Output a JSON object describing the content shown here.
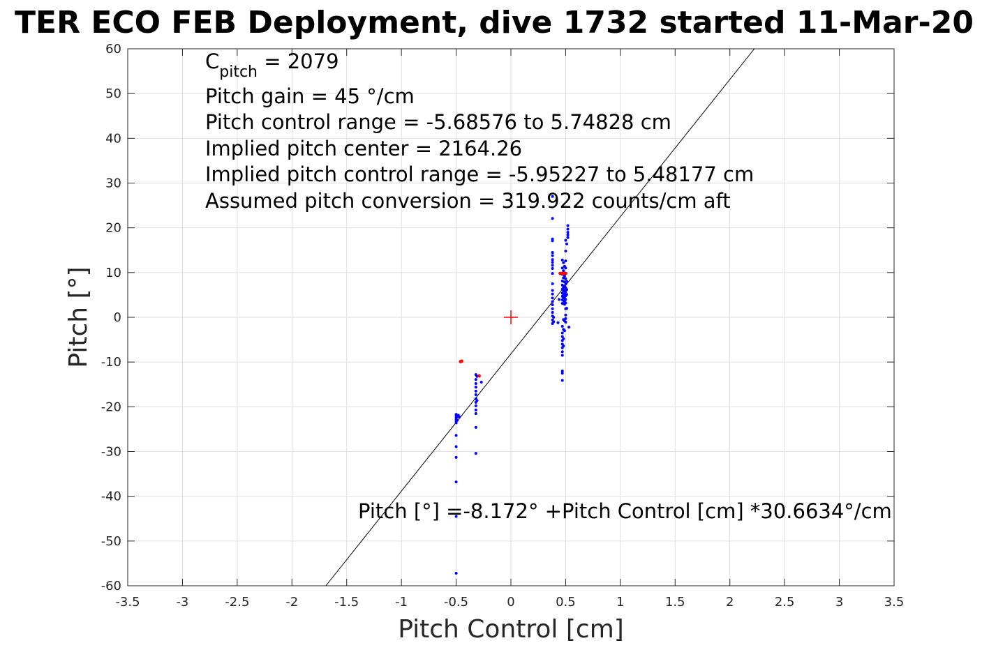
{
  "chart_data": {
    "type": "scatter",
    "title": "TER ECO FEB Deployment, dive 1732 started 11-Mar-20",
    "xlabel": "Pitch Control [cm]",
    "ylabel": "Pitch [°]",
    "xlim": [
      -3.5,
      3.5
    ],
    "ylim": [
      -60,
      60
    ],
    "xticks": [
      -3.5,
      -3,
      -2.5,
      -2,
      -1.5,
      -1,
      -0.5,
      0,
      0.5,
      1,
      1.5,
      2,
      2.5,
      3,
      3.5
    ],
    "xtick_labels": [
      "-3.5",
      "-3",
      "-2.5",
      "-2",
      "-1.5",
      "-1",
      "-0.5",
      "0",
      "0.5",
      "1",
      "1.5",
      "2",
      "2.5",
      "3",
      "3.5"
    ],
    "yticks": [
      -60,
      -50,
      -40,
      -30,
      -20,
      -10,
      0,
      10,
      20,
      30,
      40,
      50,
      60
    ],
    "ytick_labels": [
      "-60",
      "-50",
      "-40",
      "-30",
      "-20",
      "-10",
      "0",
      "10",
      "20",
      "30",
      "40",
      "50",
      "60"
    ],
    "grid": true,
    "annotations": {
      "c_pitch_base": "C",
      "c_pitch_sub": "pitch",
      "c_pitch_value": " = 2079",
      "lines": [
        "Pitch gain = 45 °/cm",
        "Pitch control range = -5.68576 to 5.74828 cm",
        "Implied pitch center = 2164.26",
        "Implied pitch control range = -5.95227 to 5.48177 cm",
        "Assumed pitch conversion = 319.922 counts/cm aft"
      ]
    },
    "fit": {
      "label": "Pitch [°] =-8.172° +Pitch Control [cm] *30.6634°/cm",
      "intercept": -8.172,
      "slope": 30.6634,
      "color": "#000000"
    },
    "center_marker": {
      "x": 0,
      "y": 0,
      "color": "#ff0000"
    },
    "series": [
      {
        "color": "#0000ff",
        "points": [
          [
            -0.5,
            -57.2
          ],
          [
            -0.5,
            -44.5
          ],
          [
            -0.5,
            -36.8
          ],
          [
            -0.5,
            -31.3
          ],
          [
            -0.5,
            -28.9
          ],
          [
            -0.5,
            -26.4
          ],
          [
            -0.5,
            -23.6
          ],
          [
            -0.5,
            -23.2
          ],
          [
            -0.5,
            -22.8
          ],
          [
            -0.5,
            -22.4
          ],
          [
            -0.5,
            -22.0
          ],
          [
            -0.5,
            -21.7
          ],
          [
            -0.49,
            -23.0
          ],
          [
            -0.49,
            -22.2
          ],
          [
            -0.48,
            -21.9
          ],
          [
            -0.47,
            -22.3
          ],
          [
            -0.32,
            -12.8
          ],
          [
            -0.32,
            -13.9
          ],
          [
            -0.32,
            -14.8
          ],
          [
            -0.32,
            -15.6
          ],
          [
            -0.32,
            -16.5
          ],
          [
            -0.32,
            -17.3
          ],
          [
            -0.32,
            -18.2
          ],
          [
            -0.32,
            -19.0
          ],
          [
            -0.32,
            -19.8
          ],
          [
            -0.32,
            -20.7
          ],
          [
            -0.32,
            -21.5
          ],
          [
            -0.32,
            -24.6
          ],
          [
            -0.32,
            -30.4
          ],
          [
            -0.31,
            -13.2
          ],
          [
            -0.31,
            -18.6
          ],
          [
            -0.27,
            -14.5
          ],
          [
            0.38,
            27.0
          ],
          [
            0.38,
            22.1
          ],
          [
            0.38,
            17.5
          ],
          [
            0.38,
            17.1
          ],
          [
            0.38,
            14.5
          ],
          [
            0.38,
            13.8
          ],
          [
            0.38,
            12.9
          ],
          [
            0.38,
            12.3
          ],
          [
            0.38,
            11.6
          ],
          [
            0.38,
            10.9
          ],
          [
            0.38,
            9.8
          ],
          [
            0.38,
            7.5
          ],
          [
            0.38,
            6.0
          ],
          [
            0.38,
            5.2
          ],
          [
            0.38,
            4.3
          ],
          [
            0.38,
            3.5
          ],
          [
            0.38,
            2.8
          ],
          [
            0.38,
            1.9
          ],
          [
            0.38,
            1.1
          ],
          [
            0.38,
            0.3
          ],
          [
            0.38,
            -0.6
          ],
          [
            0.38,
            -1.4
          ],
          [
            0.39,
            0.0
          ],
          [
            0.39,
            -1.0
          ],
          [
            0.43,
            -1.2
          ],
          [
            0.44,
            4.0
          ],
          [
            0.47,
            12.8
          ],
          [
            0.47,
            11.0
          ],
          [
            0.47,
            9.6
          ],
          [
            0.47,
            8.1
          ],
          [
            0.47,
            7.2
          ],
          [
            0.47,
            6.3
          ],
          [
            0.47,
            5.4
          ],
          [
            0.47,
            4.7
          ],
          [
            0.47,
            3.9
          ],
          [
            0.47,
            3.1
          ],
          [
            0.47,
            -2.0
          ],
          [
            0.47,
            -3.5
          ],
          [
            0.47,
            -4.3
          ],
          [
            0.47,
            -5.2
          ],
          [
            0.47,
            -6.0
          ],
          [
            0.47,
            -6.8
          ],
          [
            0.47,
            -7.7
          ],
          [
            0.47,
            -8.5
          ],
          [
            0.47,
            -12.0
          ],
          [
            0.47,
            -12.5
          ],
          [
            0.47,
            -14.1
          ],
          [
            0.48,
            12.2
          ],
          [
            0.48,
            10.4
          ],
          [
            0.48,
            8.8
          ],
          [
            0.48,
            6.7
          ],
          [
            0.48,
            5.9
          ],
          [
            0.48,
            5.0
          ],
          [
            0.48,
            4.2
          ],
          [
            0.48,
            3.3
          ],
          [
            0.48,
            -0.5
          ],
          [
            0.48,
            -2.7
          ],
          [
            0.48,
            -4.8
          ],
          [
            0.48,
            -6.4
          ],
          [
            0.49,
            11.4
          ],
          [
            0.49,
            9.2
          ],
          [
            0.49,
            7.9
          ],
          [
            0.49,
            6.9
          ],
          [
            0.49,
            6.1
          ],
          [
            0.49,
            5.3
          ],
          [
            0.49,
            4.5
          ],
          [
            0.49,
            3.6
          ],
          [
            0.49,
            2.9
          ],
          [
            0.49,
            -0.8
          ],
          [
            0.49,
            -3.0
          ],
          [
            0.5,
            17.2
          ],
          [
            0.5,
            14.8
          ],
          [
            0.5,
            12.6
          ],
          [
            0.5,
            11.0
          ],
          [
            0.5,
            8.6
          ],
          [
            0.5,
            7.4
          ],
          [
            0.5,
            6.6
          ],
          [
            0.5,
            5.7
          ],
          [
            0.5,
            4.8
          ],
          [
            0.5,
            4.0
          ],
          [
            0.5,
            3.2
          ],
          [
            0.5,
            1.9
          ],
          [
            0.5,
            0.5
          ],
          [
            0.5,
            -0.3
          ],
          [
            0.5,
            -1.1
          ],
          [
            0.51,
            16.4
          ],
          [
            0.51,
            8.0
          ],
          [
            0.51,
            6.2
          ],
          [
            0.51,
            5.1
          ],
          [
            0.51,
            2.0
          ],
          [
            0.52,
            20.5
          ],
          [
            0.52,
            19.7
          ],
          [
            0.52,
            19.0
          ],
          [
            0.52,
            18.4
          ],
          [
            0.52,
            17.8
          ],
          [
            0.53,
            -2.2
          ]
        ]
      },
      {
        "color": "#ff0000",
        "points": [
          [
            -0.46,
            -9.9
          ],
          [
            -0.45,
            -9.8
          ],
          [
            -0.29,
            -13.1
          ],
          [
            0.45,
            9.8
          ],
          [
            0.46,
            9.8
          ],
          [
            0.47,
            9.8
          ],
          [
            0.49,
            9.8
          ],
          [
            0.5,
            9.8
          ]
        ]
      }
    ]
  }
}
